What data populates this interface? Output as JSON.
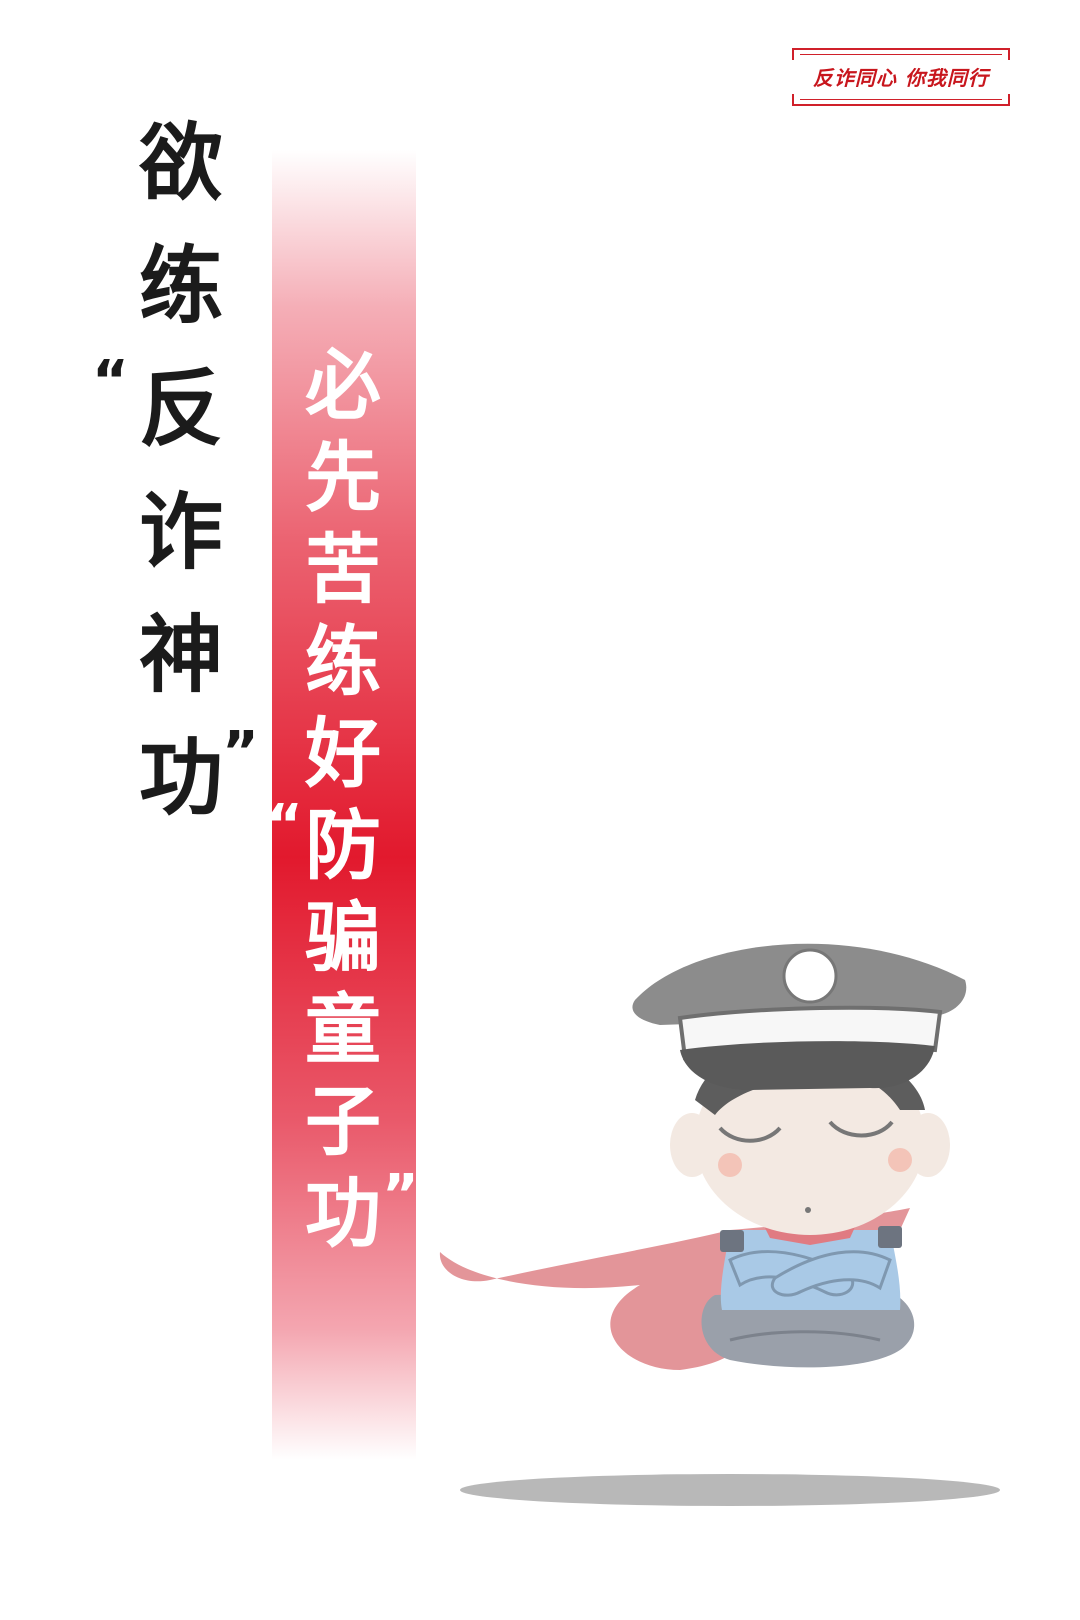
{
  "stamp": {
    "text": "反诈同心 你我同行"
  },
  "headline": {
    "chars": [
      "欲",
      "练",
      "反",
      "诈",
      "神",
      "功"
    ],
    "open_quote": "“",
    "close_quote": "”"
  },
  "subline": {
    "chars": [
      "必",
      "先",
      "苦",
      "练",
      "好",
      "防",
      "骗",
      "童",
      "子",
      "功"
    ],
    "open_quote": "“",
    "close_quote": "”"
  },
  "colors": {
    "headline": "#1b1b1b",
    "band_red": "#e2192d",
    "stamp_red": "#c8161d",
    "subline": "#ffffff"
  },
  "illustration": {
    "icon": "police-mascot-icon"
  }
}
